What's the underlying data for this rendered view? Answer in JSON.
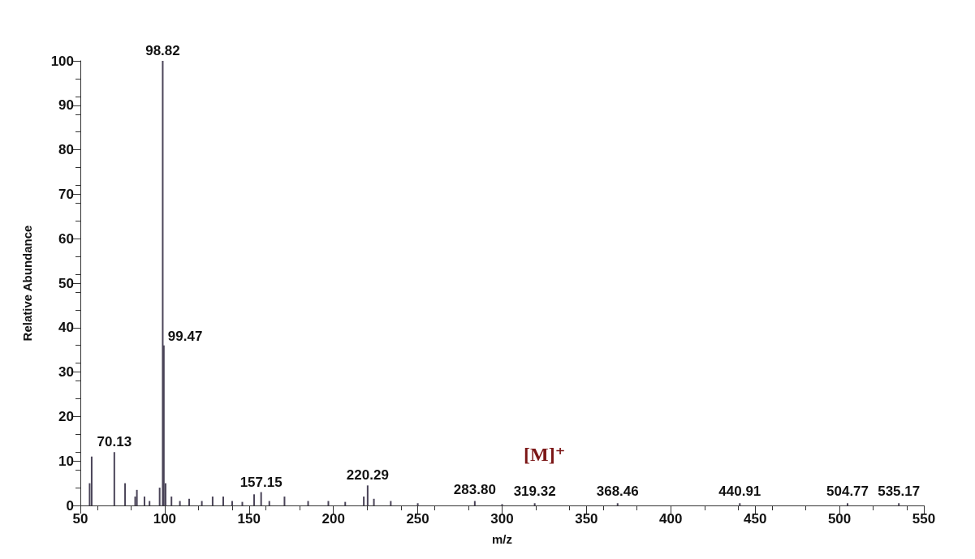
{
  "chart_data": {
    "type": "bar",
    "xlabel": "m/z",
    "ylabel": "Relative Abundance",
    "x": [
      55.5,
      56.7,
      70.13,
      76.5,
      82.5,
      83.5,
      88,
      91,
      97,
      98.82,
      99.47,
      100.5,
      104,
      109,
      114.5,
      122,
      128.4,
      134.7,
      140,
      146,
      153,
      157.15,
      162,
      171,
      185,
      197,
      207,
      218,
      220.29,
      224,
      234,
      250,
      283.8,
      300,
      319.32,
      368.46,
      440.91,
      504.77,
      535.17
    ],
    "values": [
      5,
      11,
      12,
      5,
      2,
      3.5,
      2,
      1,
      4,
      100,
      36,
      5,
      2,
      1,
      1.5,
      1,
      2,
      2,
      1,
      0.8,
      2.5,
      3,
      1,
      2,
      1,
      1,
      0.8,
      2,
      4.5,
      1.5,
      1,
      0.5,
      1,
      0.3,
      0.5,
      0.5,
      0.5,
      0.5,
      0.5
    ],
    "color": "#4a4458",
    "xlim": [
      50,
      550
    ],
    "xticks": [
      50,
      100,
      150,
      200,
      250,
      300,
      350,
      400,
      450,
      500,
      550
    ],
    "ylim": [
      0,
      100
    ],
    "yticks": [
      0,
      10,
      20,
      30,
      40,
      50,
      60,
      70,
      80,
      90,
      100
    ],
    "grid": false,
    "annotations": [
      {
        "text": "70.13",
        "x": 70.13,
        "y": 12
      },
      {
        "text": "98.82",
        "x": 98.82,
        "y": 100
      },
      {
        "text": "99.47",
        "x": 99.47,
        "y": 36
      },
      {
        "text": "157.15",
        "x": 157.15,
        "y": 3
      },
      {
        "text": "220.29",
        "x": 220.29,
        "y": 4.5
      },
      {
        "text": "283.80",
        "x": 283.8,
        "y": 1
      },
      {
        "text": "319.32",
        "x": 319.32,
        "y": 0.5
      },
      {
        "text": "368.46",
        "x": 368.46,
        "y": 0.5
      },
      {
        "text": "440.91",
        "x": 440.91,
        "y": 0.5
      },
      {
        "text": "504.77",
        "x": 504.77,
        "y": 0.5
      },
      {
        "text": "535.17",
        "x": 535.17,
        "y": 0.5
      },
      "[M]⁺"
    ]
  }
}
